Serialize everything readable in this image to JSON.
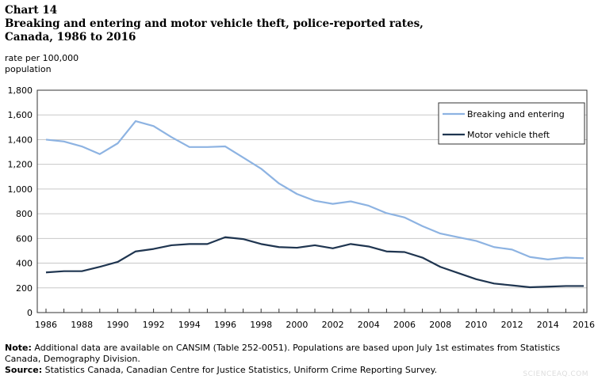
{
  "header": {
    "chart_number": "Chart 14",
    "title_line1": "Breaking and entering and motor vehicle theft, police-reported rates,",
    "title_line2": "Canada, 1986 to 2016"
  },
  "footer": {
    "note_label": "Note:",
    "note_text": " Additional data are available on CANSIM (Table 252-0051). Populations are based upon July 1st estimates from Statistics Canada, Demography Division.",
    "source_label": "Source:",
    "source_text": " Statistics Canada, Canadian Centre for Justice Statistics, Uniform Crime Reporting Survey."
  },
  "watermark": "SCIENCEAQ.COM",
  "chart_data": {
    "type": "line",
    "title": "Breaking and entering and motor vehicle theft, police-reported rates, Canada, 1986 to 2016",
    "ylabel_line1": "rate per 100,000",
    "ylabel_line2": "population",
    "xlabel": "",
    "ylim": [
      0,
      1800
    ],
    "yticks": [
      "0",
      "200",
      "400",
      "600",
      "800",
      "1,000",
      "1,200",
      "1,400",
      "1,600",
      "1,800"
    ],
    "xticks": [
      "1986",
      "1988",
      "1990",
      "1992",
      "1994",
      "1996",
      "1998",
      "2000",
      "2002",
      "2004",
      "2006",
      "2008",
      "2010",
      "2012",
      "2014",
      "2016"
    ],
    "grid": true,
    "legend_position": "top-right",
    "x": [
      1986,
      1987,
      1988,
      1989,
      1990,
      1991,
      1992,
      1993,
      1994,
      1995,
      1996,
      1997,
      1998,
      1999,
      2000,
      2001,
      2002,
      2003,
      2004,
      2005,
      2006,
      2007,
      2008,
      2009,
      2010,
      2011,
      2012,
      2013,
      2014,
      2015,
      2016
    ],
    "series": [
      {
        "name": "Breaking and entering",
        "color": "#8db3e2",
        "values": [
          1400,
          1385,
          1345,
          1283,
          1370,
          1550,
          1510,
          1420,
          1340,
          1340,
          1345,
          1255,
          1165,
          1045,
          960,
          905,
          880,
          900,
          865,
          805,
          770,
          700,
          640,
          610,
          580,
          530,
          510,
          450,
          430,
          445,
          440
        ]
      },
      {
        "name": "Motor vehicle theft",
        "color": "#1f3550",
        "values": [
          325,
          335,
          335,
          370,
          410,
          495,
          515,
          545,
          555,
          555,
          610,
          595,
          555,
          530,
          525,
          545,
          520,
          555,
          535,
          495,
          490,
          445,
          370,
          320,
          270,
          235,
          220,
          205,
          210,
          215,
          215
        ]
      }
    ]
  }
}
